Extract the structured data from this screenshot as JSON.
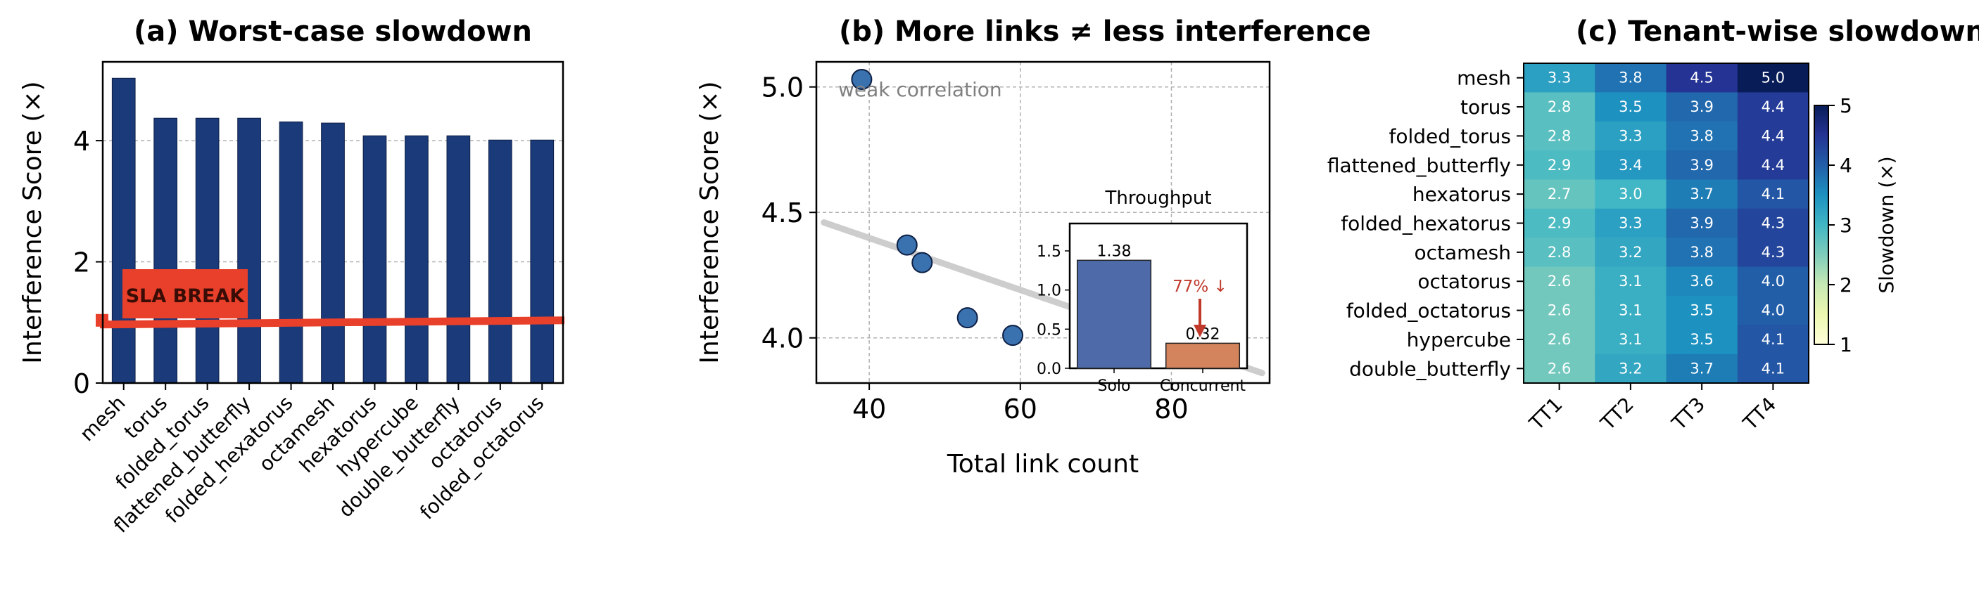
{
  "chart_data": [
    {
      "type": "bar",
      "title": "(a) Worst-case slowdown",
      "ylabel": "Interference Score (×)",
      "ylim": [
        0,
        5.3
      ],
      "yticks": [
        0,
        2,
        4
      ],
      "grid": "y",
      "categories": [
        "mesh",
        "torus",
        "folded_torus",
        "flattened_butterfly",
        "folded_hexatorus",
        "octamesh",
        "hexatorus",
        "hypercube",
        "double_butterfly",
        "octatorus",
        "folded_octatorus"
      ],
      "values": [
        5.03,
        4.37,
        4.37,
        4.37,
        4.31,
        4.29,
        4.08,
        4.08,
        4.08,
        4.01,
        4.01
      ],
      "bar_color": "#1b3a7a",
      "threshold": {
        "value": 1.0,
        "label": "SLA BREAK",
        "color": "#e8402a"
      }
    },
    {
      "type": "scatter",
      "title": "(b) More links ≠ less interference",
      "xlabel": "Total link count",
      "ylabel": "Interference Score (×)",
      "xlim": [
        33,
        93
      ],
      "ylim": [
        3.82,
        5.1
      ],
      "xticks": [
        40,
        60,
        80
      ],
      "yticks": [
        "4.0",
        "4.5",
        "5.0"
      ],
      "grid": "both",
      "points": [
        {
          "x": 39,
          "y": 5.03
        },
        {
          "x": 45,
          "y": 4.37
        },
        {
          "x": 47,
          "y": 4.3
        },
        {
          "x": 53,
          "y": 4.08
        },
        {
          "x": 59,
          "y": 4.01
        }
      ],
      "trend": {
        "x1": 34,
        "y1": 4.46,
        "x2": 92,
        "y2": 3.86
      },
      "annotation": "weak correlation",
      "point_color": "#3a72b0",
      "inset": {
        "type": "bar",
        "title": "Throughput",
        "categories": [
          "Solo",
          "Concurrent"
        ],
        "values": [
          1.38,
          0.32
        ],
        "value_labels": [
          "1.38",
          "0.32"
        ],
        "colors": [
          "#4e6aa8",
          "#d3845c"
        ],
        "ylim": [
          0,
          1.85
        ],
        "yticks": [
          "0.0",
          "0.5",
          "1.0",
          "1.5"
        ],
        "annotation": "77% ↓",
        "annotation_color": "#c0392b"
      }
    },
    {
      "type": "heatmap",
      "title": "(c) Tenant-wise slowdown",
      "rows": [
        "mesh",
        "torus",
        "folded_torus",
        "flattened_butterfly",
        "hexatorus",
        "folded_hexatorus",
        "octamesh",
        "octatorus",
        "folded_octatorus",
        "hypercube",
        "double_butterfly"
      ],
      "columns": [
        "TT1",
        "TT2",
        "TT3",
        "TT4"
      ],
      "values": [
        [
          3.3,
          3.8,
          4.5,
          5.0
        ],
        [
          2.8,
          3.5,
          3.9,
          4.4
        ],
        [
          2.8,
          3.3,
          3.8,
          4.4
        ],
        [
          2.9,
          3.4,
          3.9,
          4.4
        ],
        [
          2.7,
          3.0,
          3.7,
          4.1
        ],
        [
          2.9,
          3.3,
          3.9,
          4.3
        ],
        [
          2.8,
          3.2,
          3.8,
          4.3
        ],
        [
          2.6,
          3.1,
          3.6,
          4.0
        ],
        [
          2.6,
          3.1,
          3.5,
          4.0
        ],
        [
          2.6,
          3.1,
          3.5,
          4.1
        ],
        [
          2.6,
          3.2,
          3.7,
          4.1
        ]
      ],
      "colorbar": {
        "label": "Slowdown (×)",
        "range": [
          1,
          5
        ],
        "ticks": [
          1,
          2,
          3,
          4,
          5
        ],
        "colormap": "YlGnBu"
      }
    }
  ]
}
